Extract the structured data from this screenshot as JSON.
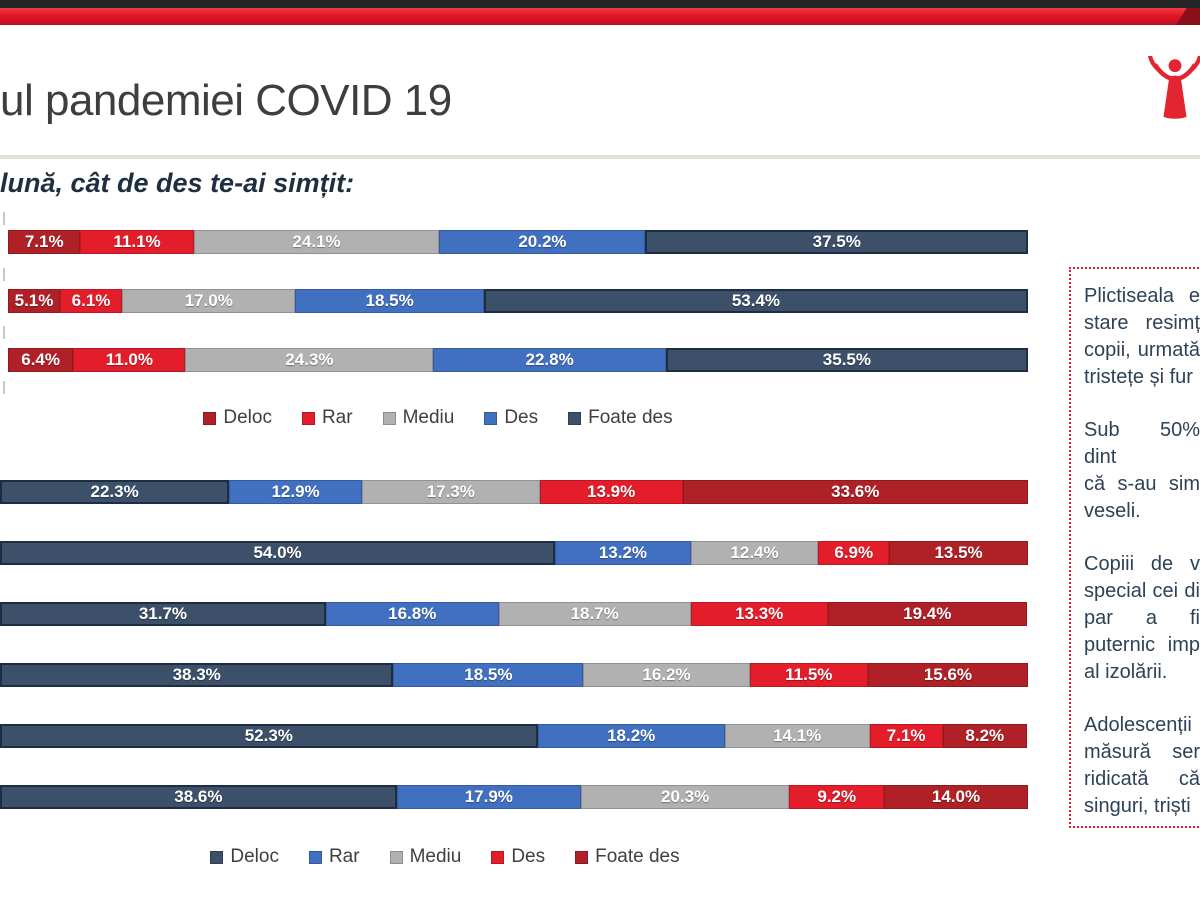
{
  "header": {
    "title": "ul pandemiei COVID 19"
  },
  "subtitle": "lună, cât de des te-ai simțit:",
  "logo": {
    "name": "save-the-children",
    "color": "#e32531"
  },
  "colors": {
    "dark_red": "#b02027",
    "red": "#e31e2a",
    "gray": "#b1b1b2",
    "blue": "#4170c0",
    "dark_blue": "#3c5069",
    "strip_black": "#232527",
    "strip_red": "#e31625",
    "note_border": "#e01b2f",
    "note_text": "#2e4257",
    "title_text": "#3e3e3e",
    "subtitle_text": "#1f2f40",
    "legend_text": "#3f3f3f"
  },
  "chart_data": [
    {
      "type": "bar",
      "orientation": "horizontal",
      "stacked": true,
      "unit": "%",
      "xlim": [
        0,
        100
      ],
      "grid": false,
      "legend_position": "bottom",
      "legend": [
        "Deloc",
        "Rar",
        "Mediu",
        "Des",
        "Foate des"
      ],
      "series_colors": [
        "dark_red",
        "red",
        "gray",
        "blue",
        "dark_blue"
      ],
      "bars": [
        [
          7.1,
          11.1,
          24.1,
          20.2,
          37.5
        ],
        [
          5.1,
          6.1,
          17.0,
          18.5,
          53.4
        ],
        [
          6.4,
          11.0,
          24.3,
          22.8,
          35.5
        ]
      ]
    },
    {
      "type": "bar",
      "orientation": "horizontal",
      "stacked": true,
      "unit": "%",
      "xlim": [
        0,
        100
      ],
      "grid": false,
      "legend_position": "bottom",
      "legend": [
        "Deloc",
        "Rar",
        "Mediu",
        "Des",
        "Foate des"
      ],
      "series_colors": [
        "dark_blue",
        "blue",
        "gray",
        "red",
        "dark_red"
      ],
      "bars": [
        [
          22.3,
          12.9,
          17.3,
          13.9,
          33.6
        ],
        [
          54.0,
          13.2,
          12.4,
          6.9,
          13.5
        ],
        [
          31.7,
          16.8,
          18.7,
          13.3,
          19.4
        ],
        [
          38.3,
          18.5,
          16.2,
          11.5,
          15.6
        ],
        [
          52.3,
          18.2,
          14.1,
          7.1,
          8.2
        ],
        [
          38.6,
          17.9,
          20.3,
          9.2,
          14.0
        ]
      ]
    }
  ],
  "note": {
    "paragraphs": [
      [
        "Plictiseala e",
        "stare resimț",
        "copii, urmată",
        "tristețe și fur"
      ],
      [
        "Sub 50% dint",
        "că s-au sim",
        "veseli."
      ],
      [
        "Copiii de v",
        "special cei di",
        "par a fi",
        "puternic imp",
        "al izolării."
      ],
      [
        "Adolescenții",
        "măsură ser",
        "ridicată că",
        "singuri, triști"
      ]
    ]
  }
}
